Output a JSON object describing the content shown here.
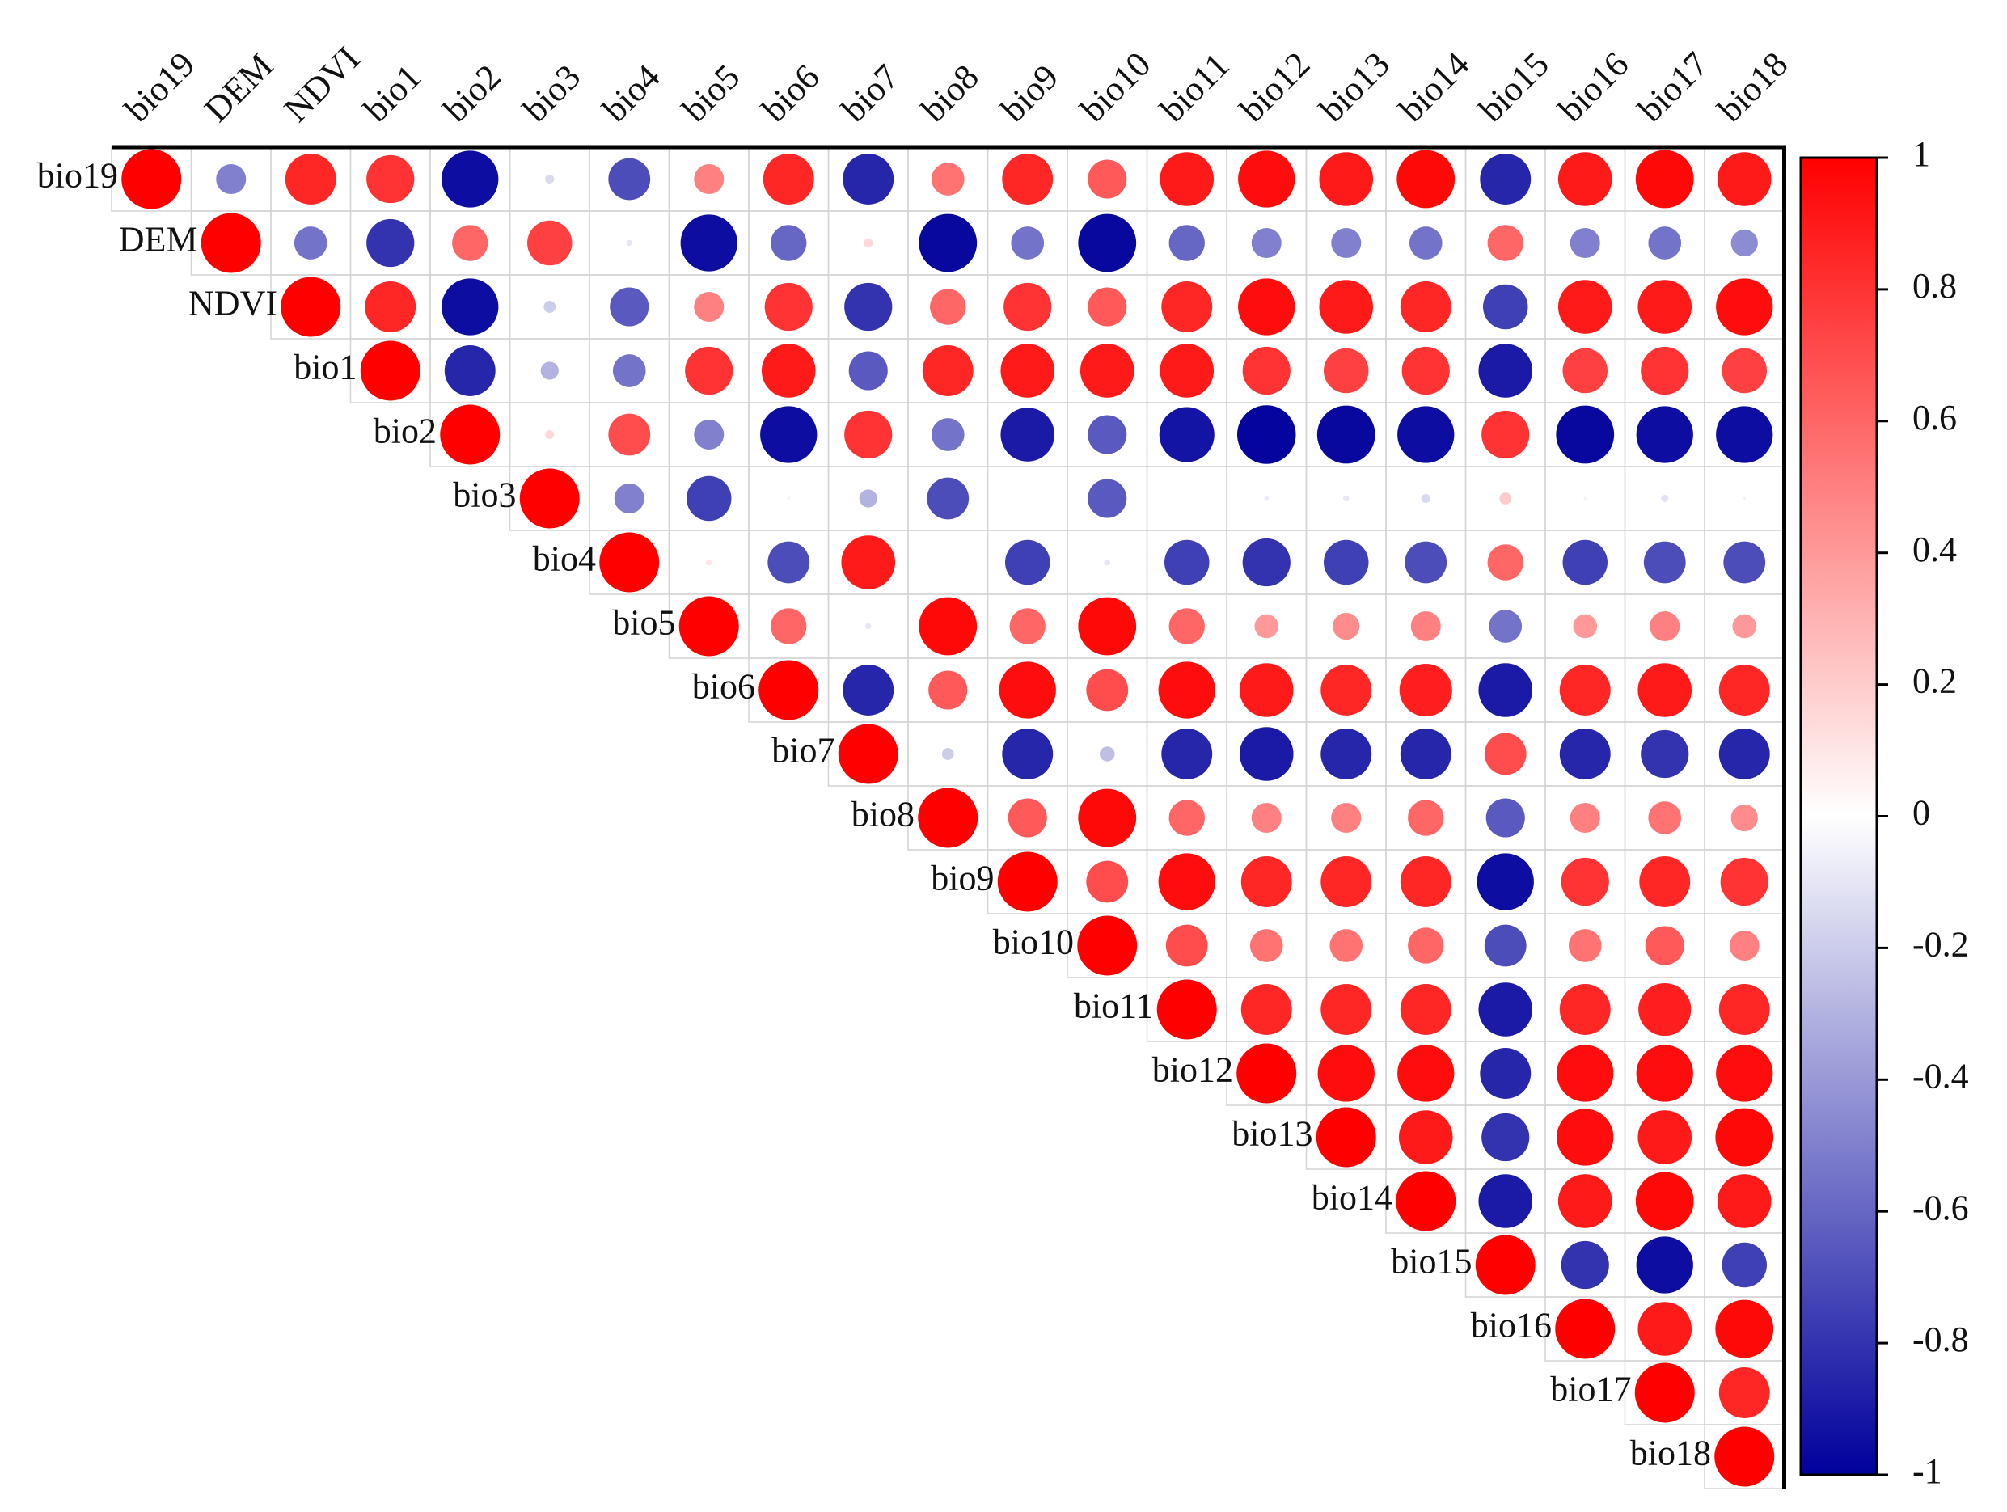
{
  "chart_data": {
    "type": "corrplot",
    "variables": [
      "bio19",
      "DEM",
      "NDVI",
      "bio1",
      "bio2",
      "bio3",
      "bio4",
      "bio5",
      "bio6",
      "bio7",
      "bio8",
      "bio9",
      "bio10",
      "bio11",
      "bio12",
      "bio13",
      "bio14",
      "bio15",
      "bio16",
      "bio17",
      "bio18"
    ],
    "values": [
      [
        1,
        -0.5,
        0.85,
        0.8,
        -0.95,
        -0.15,
        -0.7,
        0.5,
        0.85,
        -0.85,
        0.55,
        0.85,
        0.65,
        0.9,
        0.95,
        0.9,
        0.97,
        -0.85,
        0.9,
        0.97,
        0.9
      ],
      [
        1,
        -0.55,
        -0.8,
        0.6,
        0.75,
        -0.1,
        -0.95,
        -0.6,
        0.15,
        -0.97,
        -0.55,
        -0.97,
        -0.6,
        -0.5,
        -0.5,
        -0.55,
        0.6,
        -0.5,
        -0.55,
        -0.45
      ],
      [
        1,
        0.85,
        -0.95,
        -0.2,
        -0.65,
        0.5,
        0.8,
        -0.8,
        0.6,
        0.8,
        0.65,
        0.85,
        0.95,
        0.9,
        0.85,
        -0.75,
        0.9,
        0.9,
        0.95
      ],
      [
        1,
        -0.85,
        -0.3,
        -0.55,
        0.8,
        0.9,
        -0.65,
        0.85,
        0.9,
        0.9,
        0.9,
        0.8,
        0.75,
        0.8,
        -0.9,
        0.75,
        0.8,
        0.75
      ],
      [
        1,
        0.15,
        0.7,
        -0.5,
        -0.95,
        0.8,
        -0.55,
        -0.9,
        -0.65,
        -0.92,
        -0.98,
        -0.97,
        -0.95,
        0.8,
        -0.97,
        -0.95,
        -0.95
      ],
      [
        1,
        -0.5,
        -0.75,
        -0.05,
        -0.3,
        -0.7,
        -0.02,
        -0.65,
        -0.03,
        -0.08,
        -0.1,
        -0.15,
        0.2,
        -0.05,
        -0.12,
        -0.05
      ],
      [
        1,
        0.1,
        -0.7,
        0.9,
        0.02,
        -0.75,
        -0.1,
        -0.75,
        -0.8,
        -0.75,
        -0.7,
        0.6,
        -0.75,
        -0.7,
        -0.7
      ],
      [
        1,
        0.6,
        -0.1,
        0.97,
        0.6,
        0.97,
        0.6,
        0.4,
        0.45,
        0.5,
        -0.55,
        0.4,
        0.5,
        0.4
      ],
      [
        1,
        -0.85,
        0.65,
        0.95,
        0.7,
        0.95,
        0.9,
        0.85,
        0.88,
        -0.9,
        0.85,
        0.9,
        0.85
      ],
      [
        1,
        -0.2,
        -0.85,
        -0.25,
        -0.85,
        -0.9,
        -0.85,
        -0.85,
        0.7,
        -0.85,
        -0.8,
        -0.85
      ],
      [
        1,
        0.65,
        0.97,
        0.6,
        0.5,
        0.5,
        0.6,
        -0.65,
        0.5,
        0.55,
        0.45
      ],
      [
        1,
        0.7,
        0.95,
        0.85,
        0.85,
        0.85,
        -0.95,
        0.8,
        0.85,
        0.8
      ],
      [
        1,
        0.7,
        0.55,
        0.55,
        0.6,
        -0.7,
        0.55,
        0.65,
        0.5
      ],
      [
        1,
        0.85,
        0.85,
        0.85,
        -0.9,
        0.85,
        0.88,
        0.85
      ],
      [
        1,
        0.95,
        0.95,
        -0.85,
        0.95,
        0.95,
        0.95
      ],
      [
        1,
        0.9,
        -0.8,
        0.95,
        0.9,
        0.97
      ],
      [
        1,
        -0.9,
        0.9,
        0.97,
        0.9
      ],
      [
        1,
        -0.8,
        -0.95,
        -0.75
      ],
      [
        1,
        0.9,
        0.97
      ],
      [
        1,
        0.85
      ],
      [
        1
      ]
    ],
    "colors": {
      "low": "#00009c",
      "mid": "#ffffff",
      "high": "#ff0000"
    },
    "colorbar_lim": [
      -1,
      1
    ],
    "colorbar_ticks": [
      1,
      0.8,
      0.6,
      0.4,
      0.2,
      0,
      -0.2,
      -0.4,
      -0.6,
      -0.8,
      -1
    ]
  }
}
